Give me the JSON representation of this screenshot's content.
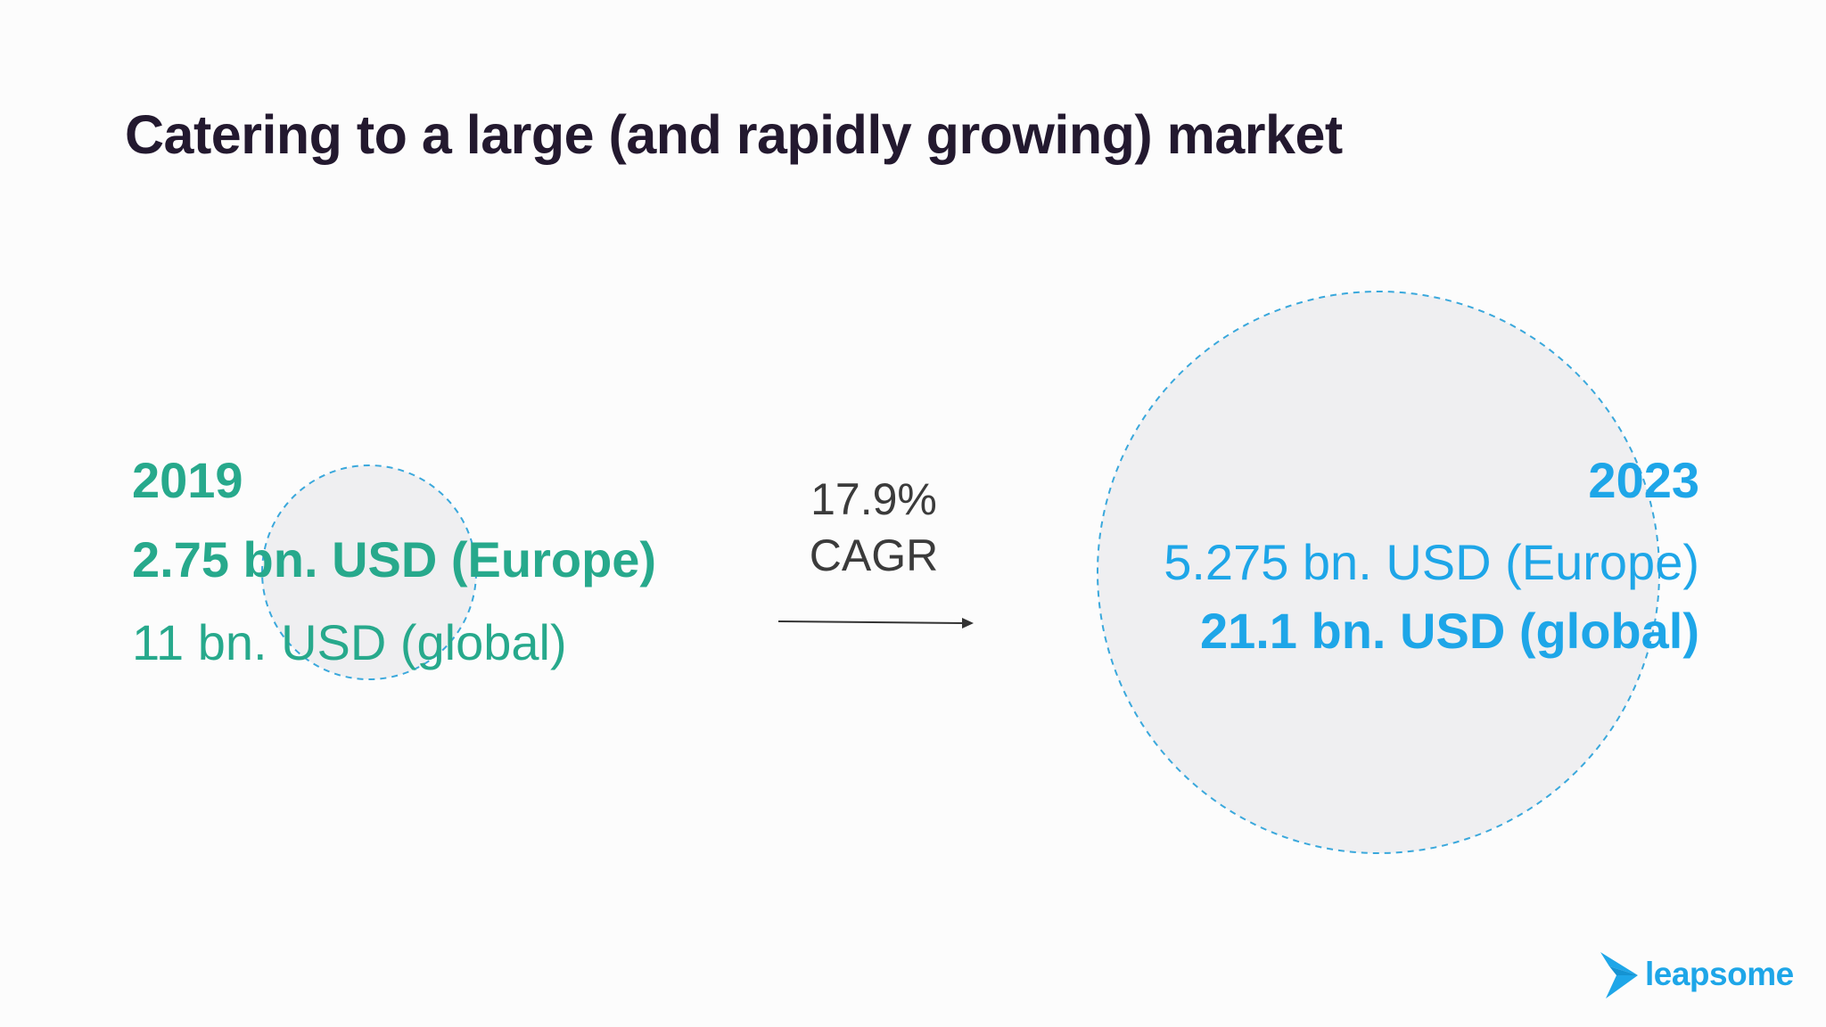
{
  "slide": {
    "title": "Catering to a large (and rapidly growing) market"
  },
  "market_2019": {
    "year": "2019",
    "europe": "2.75 bn. USD (Europe)",
    "global": "11 bn. USD (global)"
  },
  "growth": {
    "rate": "17.9%",
    "label": "CAGR"
  },
  "market_2023": {
    "year": "2023",
    "europe": "5.275 bn. USD (Europe)",
    "global": "21.1 bn. USD (global)"
  },
  "brand": {
    "name": "leapsome",
    "logo_icon": "bird-icon"
  },
  "colors": {
    "title": "#23192f",
    "green": "#27a98c",
    "blue": "#1ea6e8",
    "circle_fill": "#efeff1",
    "circle_stroke": "#3aa8dc",
    "arrow": "#333333"
  }
}
